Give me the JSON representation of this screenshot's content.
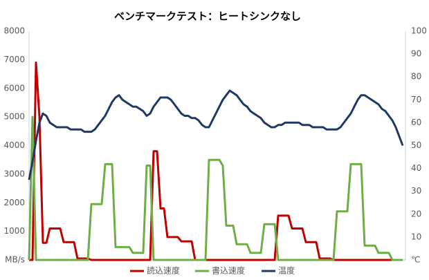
{
  "chart_data": {
    "type": "line",
    "title": "ベンチマークテスト：ヒートシンクなし",
    "ylim": [
      0,
      8000
    ],
    "yticks": [
      {
        "value": 0,
        "label": "MB/s"
      },
      1000,
      2000,
      3000,
      4000,
      5000,
      6000,
      7000,
      8000
    ],
    "y2lim": [
      0,
      100
    ],
    "y2ticks": [
      {
        "value": 0,
        "label": "℃"
      },
      10,
      20,
      30,
      40,
      50,
      60,
      70,
      80,
      90,
      100
    ],
    "legend": "bottom",
    "series": [
      {
        "name": "読込速度",
        "color": "#c00000",
        "values": [
          0,
          0,
          6900,
          5000,
          600,
          600,
          1100,
          1100,
          1100,
          1100,
          620,
          620,
          620,
          620,
          50,
          50,
          50,
          50,
          0,
          0,
          0,
          0,
          0,
          0,
          0,
          0,
          0,
          0,
          0,
          0,
          0,
          0,
          0,
          0,
          0,
          0,
          3800,
          3800,
          1800,
          1800,
          800,
          800,
          800,
          800,
          650,
          650,
          650,
          650,
          0,
          0,
          0,
          0,
          0,
          0,
          0,
          0,
          0,
          0,
          0,
          0,
          0,
          0,
          0,
          0,
          0,
          0,
          0,
          0,
          0,
          0,
          0,
          0,
          1550,
          1550,
          1550,
          1550,
          1100,
          1100,
          1100,
          1100,
          620,
          620,
          620,
          620,
          50,
          50,
          50,
          50,
          0,
          0,
          0,
          0,
          0,
          0,
          0,
          0,
          0,
          0,
          0,
          0,
          0,
          0,
          0,
          0,
          0,
          0,
          0,
          0,
          0
        ]
      },
      {
        "name": "書込速度",
        "color": "#70ad47",
        "values": [
          0,
          5000,
          0,
          0,
          0,
          0,
          0,
          0,
          0,
          0,
          0,
          0,
          0,
          0,
          0,
          0,
          0,
          0,
          1950,
          1950,
          1950,
          1950,
          3350,
          3350,
          3350,
          450,
          450,
          450,
          450,
          450,
          250,
          250,
          250,
          250,
          3300,
          3300,
          0,
          0,
          0,
          0,
          0,
          0,
          0,
          0,
          0,
          0,
          0,
          0,
          0,
          0,
          0,
          0,
          3500,
          3500,
          3500,
          3500,
          3300,
          1200,
          1200,
          1200,
          550,
          550,
          550,
          550,
          250,
          250,
          250,
          250,
          1250,
          1250,
          1250,
          1250,
          0,
          0,
          0,
          0,
          0,
          0,
          0,
          0,
          0,
          0,
          0,
          0,
          0,
          0,
          0,
          0,
          0,
          1700,
          1700,
          1700,
          1700,
          3350,
          3350,
          3350,
          3350,
          500,
          500,
          500,
          500,
          250,
          250,
          250,
          250,
          0,
          0,
          0,
          0
        ]
      },
      {
        "name": "温度",
        "color": "#1f3864",
        "axis": "y2",
        "values": [
          35,
          43,
          52,
          60,
          64,
          63,
          60,
          59,
          58,
          58,
          58,
          58,
          57,
          57,
          57,
          57,
          56,
          56,
          56,
          57,
          59,
          61,
          63,
          66,
          69,
          71,
          72,
          70,
          69,
          68,
          67,
          67,
          66,
          65,
          63,
          64,
          67,
          69,
          71,
          71,
          71,
          70,
          68,
          66,
          64,
          63,
          63,
          62,
          62,
          61,
          59,
          58,
          58,
          61,
          64,
          67,
          70,
          72,
          74,
          73,
          72,
          70,
          68,
          67,
          65,
          64,
          63,
          62,
          60,
          59,
          58,
          58,
          59,
          59,
          60,
          60,
          60,
          60,
          60,
          59,
          59,
          59,
          58,
          58,
          58,
          58,
          57,
          57,
          57,
          57,
          58,
          60,
          62,
          64,
          67,
          70,
          72,
          72,
          71,
          70,
          69,
          68,
          66,
          65,
          63,
          61,
          58,
          54,
          50
        ]
      }
    ]
  }
}
